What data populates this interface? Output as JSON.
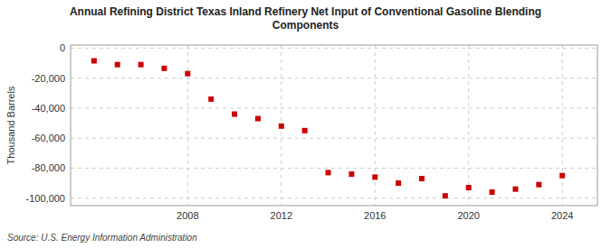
{
  "chart_data": {
    "type": "scatter",
    "title": "Annual Refining District Texas Inland Refinery Net Input of Conventional Gasoline Blending\nComponents",
    "y_label": "Thousand Barrels",
    "source": "Source: U.S. Energy Information Administration",
    "x": [
      2004,
      2005,
      2006,
      2007,
      2008,
      2009,
      2010,
      2011,
      2012,
      2013,
      2014,
      2015,
      2016,
      2017,
      2018,
      2019,
      2020,
      2021,
      2022,
      2023,
      2024
    ],
    "values": [
      -8500,
      -11000,
      -11000,
      -13500,
      -17000,
      -34000,
      -44000,
      -47000,
      -52000,
      -55000,
      -83000,
      -84000,
      -86000,
      -90000,
      -87000,
      -98500,
      -93000,
      -96000,
      -94000,
      -91000,
      -85000
    ],
    "color": "#cc0000",
    "marker": "square",
    "xlim": [
      2003.0,
      2025.5
    ],
    "ylim": [
      -105000,
      2000
    ],
    "xticks": [
      2008,
      2012,
      2016,
      2020,
      2024
    ],
    "yticks": [
      0,
      {
        "value": -20000,
        "label": "-20,000"
      },
      {
        "value": -40000,
        "label": "-40,000"
      },
      {
        "value": -60000,
        "label": "-60,000"
      },
      {
        "value": -80000,
        "label": "-80,000"
      },
      {
        "value": -100000,
        "label": "-100,000"
      }
    ],
    "grid": true
  }
}
